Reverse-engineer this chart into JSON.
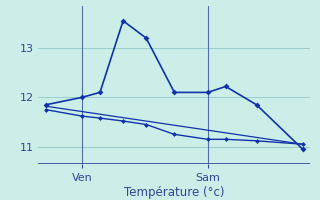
{
  "xlabel": "Température (°c)",
  "background_color": "#cceee8",
  "grid_color": "#99cccc",
  "line_color": "#1133aa",
  "axis_color": "#334499",
  "ylim": [
    10.65,
    13.85
  ],
  "xlim": [
    -0.3,
    10.3
  ],
  "yticks": [
    11,
    12,
    13
  ],
  "ytick_labels": [
    "11",
    "12",
    "13"
  ],
  "ven_x": 1.4,
  "sam_x": 6.3,
  "series1": {
    "x": [
      0,
      1.4,
      2.1,
      3.0,
      3.9,
      5.0,
      6.3,
      7.0,
      8.2,
      10.0
    ],
    "y": [
      11.85,
      12.0,
      12.1,
      13.55,
      13.2,
      12.1,
      12.1,
      12.22,
      11.85,
      10.95
    ]
  },
  "series2": {
    "x": [
      0,
      1.4,
      2.1,
      3.0,
      3.9,
      5.0,
      6.3,
      7.0,
      8.2,
      10.0
    ],
    "y": [
      11.75,
      11.62,
      11.58,
      11.52,
      11.45,
      11.25,
      11.15,
      11.15,
      11.12,
      11.05
    ]
  },
  "series3": {
    "x": [
      0,
      10.0
    ],
    "y": [
      11.82,
      11.05
    ]
  }
}
